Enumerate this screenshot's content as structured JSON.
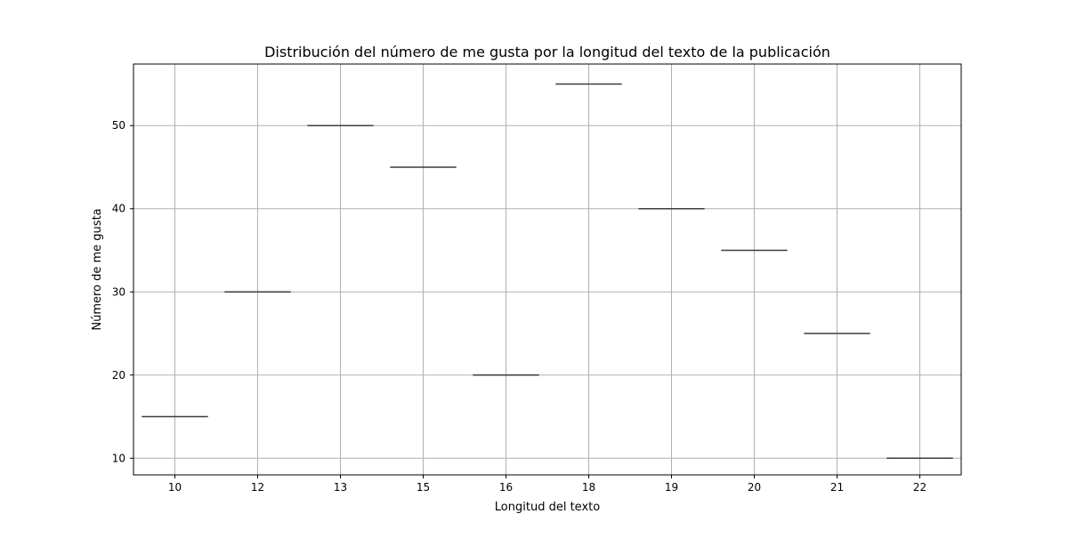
{
  "chart_data": {
    "type": "box",
    "title": "Distribución del número de me gusta por la longitud del texto de la publicación",
    "xlabel": "Longitud del texto",
    "ylabel": "Número de me gusta",
    "categories": [
      "10",
      "12",
      "13",
      "15",
      "16",
      "18",
      "19",
      "20",
      "21",
      "22"
    ],
    "values": [
      15,
      30,
      50,
      45,
      20,
      55,
      40,
      35,
      25,
      10
    ],
    "ylim": [
      8,
      57.4
    ],
    "yticks": [
      10,
      20,
      30,
      40,
      50
    ],
    "grid": true,
    "colors": {
      "median_line": "#3d3d3d",
      "grid": "#b0b0b0",
      "axes": "#000000"
    }
  }
}
